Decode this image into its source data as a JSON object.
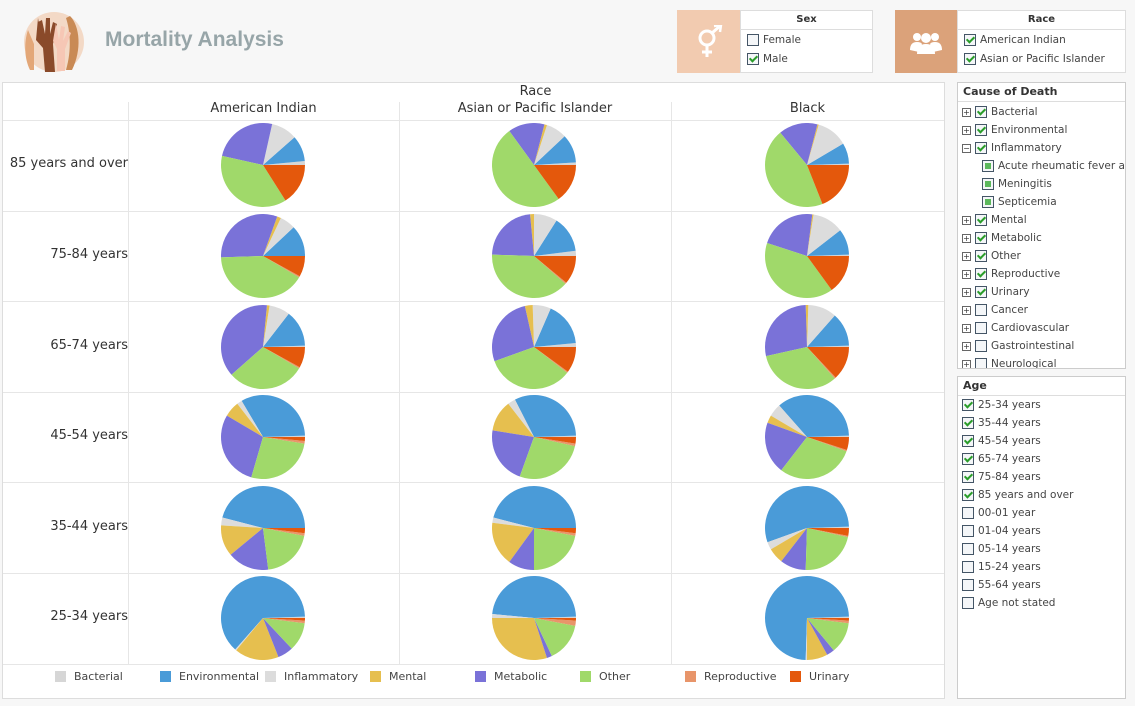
{
  "header": {
    "title": "Mortality Analysis",
    "logo": "raised-hands-logo"
  },
  "sex_filter": {
    "title": "Sex",
    "icon": "gender-icon",
    "color": "#f2cbb0",
    "items": [
      {
        "label": "Female",
        "checked": false
      },
      {
        "label": "Male",
        "checked": true
      }
    ]
  },
  "race_filter": {
    "title": "Race",
    "icon": "people-group-icon",
    "color": "#dba27a",
    "items": [
      {
        "label": "American Indian",
        "checked": true
      },
      {
        "label": "Asian or Pacific Islander",
        "checked": true
      }
    ]
  },
  "cause_filter": {
    "title": "Cause of Death",
    "items": [
      {
        "label": "Bacterial",
        "state": "on",
        "toggle": "+",
        "level": 0
      },
      {
        "label": "Environmental",
        "state": "on",
        "toggle": "+",
        "level": 0
      },
      {
        "label": "Inflammatory",
        "state": "on",
        "toggle": "−",
        "level": 0
      },
      {
        "label": "Acute rheumatic fever and c",
        "state": "part",
        "toggle": "",
        "level": 1
      },
      {
        "label": "Meningitis",
        "state": "part",
        "toggle": "",
        "level": 1
      },
      {
        "label": "Septicemia",
        "state": "part",
        "toggle": "",
        "level": 1
      },
      {
        "label": "Mental",
        "state": "on",
        "toggle": "+",
        "level": 0
      },
      {
        "label": "Metabolic",
        "state": "on",
        "toggle": "+",
        "level": 0
      },
      {
        "label": "Other",
        "state": "on",
        "toggle": "+",
        "level": 0
      },
      {
        "label": "Reproductive",
        "state": "on",
        "toggle": "+",
        "level": 0
      },
      {
        "label": "Urinary",
        "state": "on",
        "toggle": "+",
        "level": 0
      },
      {
        "label": "Cancer",
        "state": "off",
        "toggle": "+",
        "level": 0
      },
      {
        "label": "Cardiovascular",
        "state": "off",
        "toggle": "+",
        "level": 0
      },
      {
        "label": "Gastrointestinal",
        "state": "off",
        "toggle": "+",
        "level": 0
      },
      {
        "label": "Neurological",
        "state": "off",
        "toggle": "+",
        "level": 0
      }
    ]
  },
  "age_filter": {
    "title": "Age",
    "items": [
      {
        "label": "25-34 years",
        "checked": true
      },
      {
        "label": "35-44 years",
        "checked": true
      },
      {
        "label": "45-54 years",
        "checked": true
      },
      {
        "label": "65-74 years",
        "checked": true
      },
      {
        "label": "75-84 years",
        "checked": true
      },
      {
        "label": "85 years and over",
        "checked": true
      },
      {
        "label": "00-01 year",
        "checked": false
      },
      {
        "label": "01-04 years",
        "checked": false
      },
      {
        "label": "05-14 years",
        "checked": false
      },
      {
        "label": "15-24 years",
        "checked": false
      },
      {
        "label": "55-64 years",
        "checked": false
      },
      {
        "label": "Age not stated",
        "checked": false
      }
    ]
  },
  "chart_data": {
    "type": "pie",
    "column_header": "Race",
    "columns": [
      "American Indian",
      "Asian or Pacific Islander",
      "Black"
    ],
    "rows": [
      "85 years and over",
      "75-84 years",
      "65-74 years",
      "45-54 years",
      "35-44 years",
      "25-34 years"
    ],
    "categories": [
      "Bacterial",
      "Environmental",
      "Inflammatory",
      "Mental",
      "Metabolic",
      "Other",
      "Reproductive",
      "Urinary"
    ],
    "colors": [
      "#d6d6d6",
      "#4a9bd8",
      "#dcdcdc",
      "#e6bf4f",
      "#7a72d8",
      "#a0d96a",
      "#e8956a",
      "#e4580c"
    ],
    "legend_position": "bottom",
    "values": [
      [
        [
          1.5,
          10,
          10,
          0,
          25,
          37.5,
          0,
          16
        ],
        [
          1,
          11,
          8,
          1,
          14,
          50,
          0,
          15
        ],
        [
          0.5,
          8,
          12,
          0.5,
          15,
          45,
          0,
          19
        ]
      ],
      [
        [
          0,
          12,
          6,
          1.5,
          31,
          41,
          0.5,
          8
        ],
        [
          2,
          14,
          9,
          1.5,
          23,
          39,
          0.5,
          11
        ],
        [
          0.5,
          10,
          12,
          0.5,
          22,
          40,
          0,
          15
        ]
      ],
      [
        [
          0.5,
          14,
          8,
          1,
          38,
          30,
          0.5,
          8
        ],
        [
          1.5,
          17,
          7,
          3,
          27,
          34,
          0.5,
          10
        ],
        [
          0.5,
          13,
          11,
          1,
          28,
          33,
          0.5,
          13
        ]
      ],
      [
        [
          0.5,
          33,
          2,
          6,
          29,
          27,
          1,
          1.5
        ],
        [
          0.5,
          32,
          3,
          12,
          22,
          27,
          1,
          2.5
        ],
        [
          0.5,
          36,
          5,
          3,
          20,
          30,
          0.5,
          5
        ]
      ],
      [
        [
          0,
          46,
          3,
          12,
          16,
          20,
          1,
          2
        ],
        [
          0,
          46,
          2,
          17,
          10,
          22,
          1,
          2
        ],
        [
          0.5,
          55,
          3,
          6,
          10,
          22,
          0.5,
          3
        ]
      ],
      [
        [
          0.5,
          63,
          0.5,
          17,
          6,
          11,
          1,
          1
        ],
        [
          0.5,
          48,
          1.5,
          30,
          2,
          15,
          2,
          1
        ],
        [
          0.5,
          74,
          0.5,
          8,
          3,
          12,
          1,
          1
        ]
      ]
    ]
  }
}
